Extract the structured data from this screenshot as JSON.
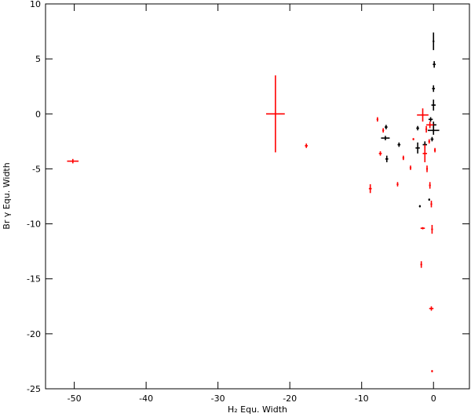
{
  "chart_data": {
    "type": "scatter",
    "xlabel": "H₂ Equ. Width",
    "ylabel": "Br γ Equ. Width",
    "xlim": [
      -54,
      5
    ],
    "ylim": [
      -25,
      10
    ],
    "xticks": [
      -50,
      -40,
      -30,
      -20,
      -10,
      0
    ],
    "yticks": [
      10,
      5,
      0,
      -5,
      -10,
      -15,
      -20,
      -25
    ],
    "series": [
      {
        "color": "#000000",
        "x": [
          0,
          0.1,
          0,
          0,
          0,
          -0.4,
          -0.2,
          -1.2,
          -2.2,
          -6.7,
          -6.6,
          -6.5,
          -4.8,
          -2.2,
          -1.9,
          -0.6,
          0
        ],
        "values": [
          6.6,
          4.5,
          2.3,
          0.8,
          -1.5,
          -0.5,
          -2.3,
          -2.8,
          -3.1,
          -2.2,
          -1.2,
          -4.1,
          -2.8,
          -1.3,
          -8.4,
          -7.8,
          -1.0
        ],
        "xerr": [
          0.1,
          0.2,
          0.2,
          0.3,
          0.8,
          0.3,
          0.2,
          0.3,
          0.3,
          0.6,
          0.2,
          0.2,
          0.2,
          0.2,
          0.1,
          0.1,
          0.4
        ],
        "yerr": [
          0.8,
          0.3,
          0.3,
          0.5,
          0.4,
          0.2,
          0.2,
          0.3,
          0.5,
          0.2,
          0.2,
          0.3,
          0.2,
          0.2,
          0.1,
          0.1,
          0.3
        ]
      },
      {
        "color": "#ff0000",
        "x": [
          -50.2,
          -22,
          -17.7,
          -8.8,
          -7.4,
          -7.8,
          -7,
          -5,
          -4.2,
          -3.2,
          -2.8,
          -1.5,
          -1.2,
          -1.5,
          -1.7,
          -0.3,
          -0.2,
          -0.3,
          -0.2,
          -0.5,
          -0.9,
          -0.5,
          0.2,
          -1.0,
          -0.6
        ],
        "values": [
          -4.3,
          0,
          -2.9,
          -6.8,
          -3.6,
          -0.5,
          -1.5,
          -6.4,
          -4,
          -4.9,
          -2.3,
          -0.1,
          -3.6,
          -10.4,
          -13.7,
          -17.7,
          -23.4,
          -8.2,
          -10.5,
          -1,
          -5,
          -6.5,
          -3.3,
          -1.4,
          -2.5
        ],
        "xerr": [
          0.8,
          1.3,
          0.2,
          0.2,
          0.2,
          0.1,
          0.1,
          0.1,
          0.1,
          0.1,
          0.1,
          0.8,
          0.3,
          0.3,
          0.1,
          0.3,
          0.1,
          0.1,
          0.1,
          0.5,
          0.1,
          0.1,
          0.1,
          0.1,
          0.1
        ],
        "yerr": [
          0.2,
          3.5,
          0.2,
          0.4,
          0.2,
          0.2,
          0.2,
          0.2,
          0.2,
          0.2,
          0.1,
          0.6,
          0.8,
          0.1,
          0.3,
          0.2,
          0.1,
          0.3,
          0.4,
          0.3,
          0.3,
          0.3,
          0.2,
          0.3,
          0.2
        ]
      }
    ]
  }
}
